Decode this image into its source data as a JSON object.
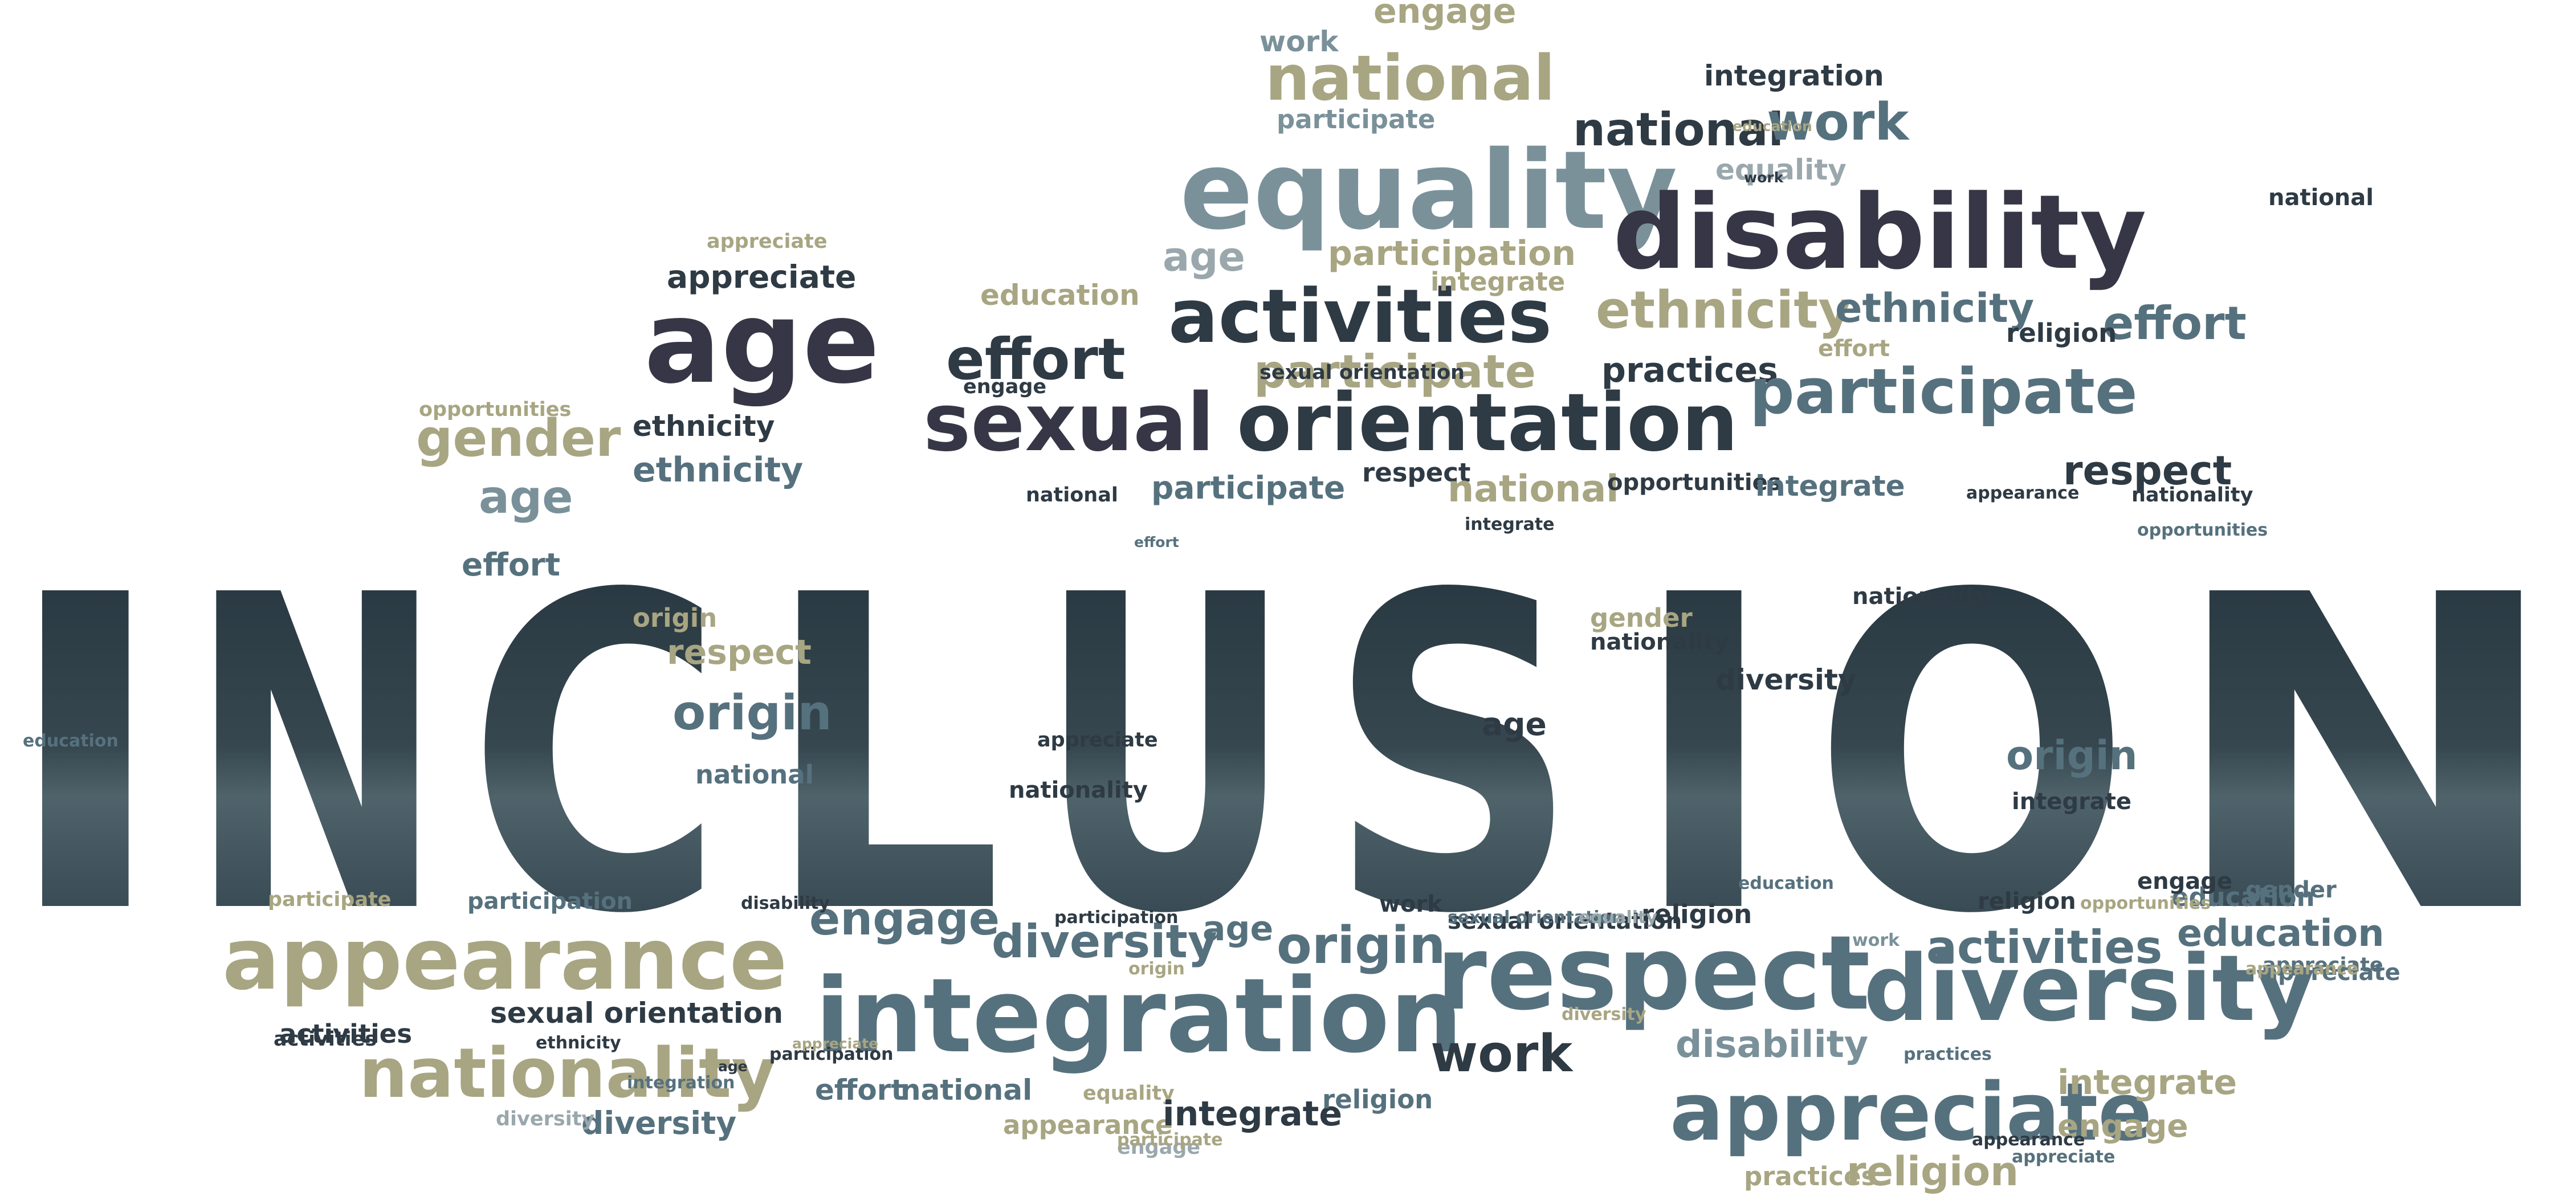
{
  "palette": {
    "dark": "#2e3a44",
    "navy": "#363646",
    "slate": "#56717e",
    "steel": "#7a919a",
    "khaki": "#a8a582",
    "mist": "#9aa8ad"
  },
  "title": {
    "text": "INCLUSION",
    "letters": [
      "I",
      "N",
      "C",
      "L",
      "U",
      "S",
      "I",
      "O",
      "N"
    ]
  },
  "words": [
    {
      "text": "equality",
      "color": "steel"
    },
    {
      "text": "disability",
      "color": "navy"
    },
    {
      "text": "national",
      "color": "khaki"
    },
    {
      "text": "national",
      "color": "dark"
    },
    {
      "text": "work",
      "color": "slate"
    },
    {
      "text": "engage",
      "color": "khaki"
    },
    {
      "text": "work",
      "color": "steel"
    },
    {
      "text": "integration",
      "color": "dark"
    },
    {
      "text": "participate",
      "color": "steel"
    },
    {
      "text": "equality",
      "color": "mist"
    },
    {
      "text": "appreciate",
      "color": "khaki"
    },
    {
      "text": "participate",
      "color": "khaki"
    },
    {
      "text": "age",
      "color": "navy"
    },
    {
      "text": "appreciate",
      "color": "dark"
    },
    {
      "text": "education",
      "color": "khaki"
    },
    {
      "text": "activities",
      "color": "dark"
    },
    {
      "text": "effort",
      "color": "dark"
    },
    {
      "text": "participation",
      "color": "khaki"
    },
    {
      "text": "age",
      "color": "mist"
    },
    {
      "text": "integrate",
      "color": "khaki"
    },
    {
      "text": "ethnicity",
      "color": "khaki"
    },
    {
      "text": "ethnicity",
      "color": "slate"
    },
    {
      "text": "effort",
      "color": "slate"
    },
    {
      "text": "religion",
      "color": "dark"
    },
    {
      "text": "effort",
      "color": "khaki"
    },
    {
      "text": "practices",
      "color": "dark"
    },
    {
      "text": "sexual orientation",
      "color": "dark"
    },
    {
      "text": "sexual",
      "color": "navy"
    },
    {
      "text": "orientation",
      "color": "dark"
    },
    {
      "text": "participate",
      "color": "slate"
    },
    {
      "text": "gender",
      "color": "khaki"
    },
    {
      "text": "ethnicity",
      "color": "dark"
    },
    {
      "text": "ethnicity",
      "color": "slate"
    },
    {
      "text": "age",
      "color": "steel"
    },
    {
      "text": "opportunities",
      "color": "khaki"
    },
    {
      "text": "engage",
      "color": "dark"
    },
    {
      "text": "respect",
      "color": "dark"
    },
    {
      "text": "nationality",
      "color": "dark"
    },
    {
      "text": "participate",
      "color": "slate"
    },
    {
      "text": "respect",
      "color": "dark"
    },
    {
      "text": "national",
      "color": "khaki"
    },
    {
      "text": "opportunities",
      "color": "dark"
    },
    {
      "text": "integrate",
      "color": "slate"
    },
    {
      "text": "integrate",
      "color": "dark"
    },
    {
      "text": "national",
      "color": "dark"
    },
    {
      "text": "appearance",
      "color": "dark"
    },
    {
      "text": "opportunities",
      "color": "slate"
    },
    {
      "text": "effort",
      "color": "slate"
    },
    {
      "text": "origin",
      "color": "khaki"
    },
    {
      "text": "respect",
      "color": "khaki"
    },
    {
      "text": "origin",
      "color": "slate"
    },
    {
      "text": "national",
      "color": "slate"
    },
    {
      "text": "age",
      "color": "dark"
    },
    {
      "text": "gender",
      "color": "khaki"
    },
    {
      "text": "nationality",
      "color": "dark"
    },
    {
      "text": "nationality",
      "color": "dark"
    },
    {
      "text": "origin",
      "color": "slate"
    },
    {
      "text": "integrate",
      "color": "dark"
    },
    {
      "text": "diversity",
      "color": "dark"
    },
    {
      "text": "appearance",
      "color": "khaki"
    },
    {
      "text": "engage",
      "color": "slate"
    },
    {
      "text": "diversity",
      "color": "slate"
    },
    {
      "text": "age",
      "color": "slate"
    },
    {
      "text": "origin",
      "color": "slate"
    },
    {
      "text": "sexual orientation",
      "color": "dark"
    },
    {
      "text": "religion",
      "color": "dark"
    },
    {
      "text": "work",
      "color": "dark"
    },
    {
      "text": "activities",
      "color": "slate"
    },
    {
      "text": "education",
      "color": "slate"
    },
    {
      "text": "education",
      "color": "slate"
    },
    {
      "text": "appreciate",
      "color": "slate"
    },
    {
      "text": "integration",
      "color": "slate"
    },
    {
      "text": "respect",
      "color": "slate"
    },
    {
      "text": "diversity",
      "color": "slate"
    },
    {
      "text": "work",
      "color": "dark"
    },
    {
      "text": "sexual orientation",
      "color": "dark"
    },
    {
      "text": "activities",
      "color": "dark"
    },
    {
      "text": "ethnicity",
      "color": "dark"
    },
    {
      "text": "nationality",
      "color": "khaki"
    },
    {
      "text": "disability",
      "color": "steel"
    },
    {
      "text": "appreciate",
      "color": "slate"
    },
    {
      "text": "integrate",
      "color": "khaki"
    },
    {
      "text": "engage",
      "color": "khaki"
    },
    {
      "text": "religion",
      "color": "khaki"
    },
    {
      "text": "practices",
      "color": "khaki"
    },
    {
      "text": "effort",
      "color": "slate"
    },
    {
      "text": "national",
      "color": "slate"
    },
    {
      "text": "equality",
      "color": "khaki"
    },
    {
      "text": "appearance",
      "color": "khaki"
    },
    {
      "text": "integrate",
      "color": "dark"
    },
    {
      "text": "religion",
      "color": "slate"
    },
    {
      "text": "engage",
      "color": "mist"
    },
    {
      "text": "diversity",
      "color": "slate"
    },
    {
      "text": "diversity",
      "color": "mist"
    },
    {
      "text": "participation",
      "color": "slate"
    },
    {
      "text": "participate",
      "color": "khaki"
    },
    {
      "text": "activities",
      "color": "dark"
    },
    {
      "text": "disability",
      "color": "dark"
    },
    {
      "text": "participation",
      "color": "dark"
    },
    {
      "text": "religion",
      "color": "dark"
    },
    {
      "text": "opportunities",
      "color": "khaki"
    },
    {
      "text": "appreciate",
      "color": "slate"
    },
    {
      "text": "appearance",
      "color": "dark"
    },
    {
      "text": "appreciate",
      "color": "slate"
    },
    {
      "text": "practices",
      "color": "slate"
    },
    {
      "text": "national",
      "color": "dark"
    },
    {
      "text": "work",
      "color": "steel"
    },
    {
      "text": "sexual orientation",
      "color": "slate"
    },
    {
      "text": "participation",
      "color": "dark"
    },
    {
      "text": "appreciate",
      "color": "khaki"
    },
    {
      "text": "age",
      "color": "dark"
    },
    {
      "text": "effort",
      "color": "slate"
    },
    {
      "text": "work",
      "color": "dark"
    },
    {
      "text": "equality",
      "color": "mist"
    },
    {
      "text": "diversity",
      "color": "khaki"
    },
    {
      "text": "education",
      "color": "slate"
    },
    {
      "text": "origin",
      "color": "khaki"
    },
    {
      "text": "education",
      "color": "khaki"
    },
    {
      "text": "appearance",
      "color": "khaki"
    },
    {
      "text": "integration",
      "color": "slate"
    },
    {
      "text": "gender",
      "color": "slate"
    },
    {
      "text": "nationality",
      "color": "dark"
    },
    {
      "text": "appreciate",
      "color": "dark"
    },
    {
      "text": "participate",
      "color": "khaki"
    },
    {
      "text": "engage",
      "color": "dark"
    },
    {
      "text": "education",
      "color": "slate"
    }
  ]
}
